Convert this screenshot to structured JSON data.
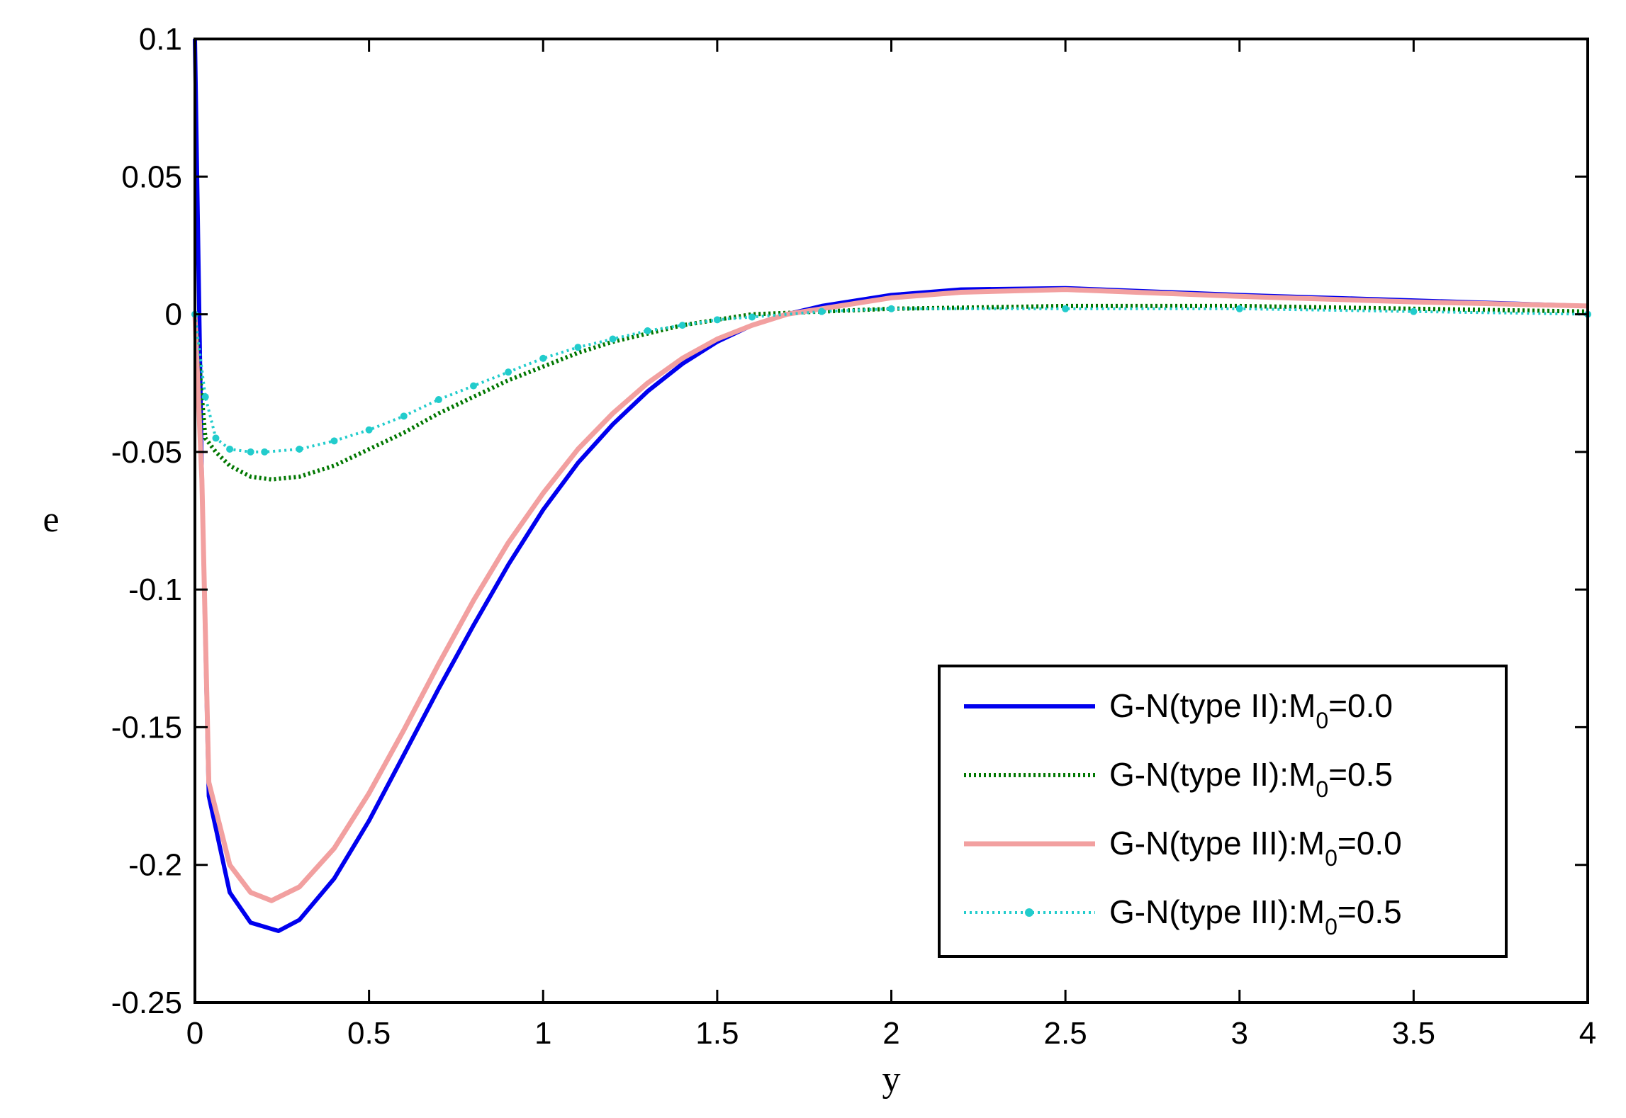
{
  "chart_data": {
    "type": "line",
    "title": "",
    "xlabel": "y",
    "ylabel": "e",
    "xlim": [
      0,
      4
    ],
    "ylim": [
      -0.25,
      0.1
    ],
    "xticks": [
      0,
      0.5,
      1,
      1.5,
      2,
      2.5,
      3,
      3.5,
      4
    ],
    "xtick_labels": [
      "0",
      "0.5",
      "1",
      "1.5",
      "2",
      "2.5",
      "3",
      "3.5",
      "4"
    ],
    "yticks": [
      0.1,
      0.05,
      0,
      -0.05,
      -0.1,
      -0.15,
      -0.2,
      -0.25
    ],
    "ytick_labels": [
      "0.1",
      "0.05",
      "0",
      "-0.05",
      "-0.1",
      "-0.15",
      "-0.2",
      "-0.25"
    ],
    "grid": false,
    "legend_position": "bottom-right",
    "series": [
      {
        "name": "G-N(type II):M0=0.0",
        "label_main": "G-N(type II):M",
        "label_sub": "0",
        "label_tail": "=0.0",
        "color": "#0000ee",
        "style": "solid",
        "points": [
          [
            0,
            0.1
          ],
          [
            0.02,
            -0.06
          ],
          [
            0.04,
            -0.175
          ],
          [
            0.1,
            -0.21
          ],
          [
            0.16,
            -0.221
          ],
          [
            0.24,
            -0.224
          ],
          [
            0.3,
            -0.22
          ],
          [
            0.4,
            -0.205
          ],
          [
            0.5,
            -0.184
          ],
          [
            0.6,
            -0.16
          ],
          [
            0.7,
            -0.136
          ],
          [
            0.8,
            -0.113
          ],
          [
            0.9,
            -0.091
          ],
          [
            1.0,
            -0.071
          ],
          [
            1.1,
            -0.054
          ],
          [
            1.2,
            -0.04
          ],
          [
            1.3,
            -0.028
          ],
          [
            1.4,
            -0.018
          ],
          [
            1.5,
            -0.01
          ],
          [
            1.6,
            -0.004
          ],
          [
            1.7,
            0.0
          ],
          [
            1.8,
            0.003
          ],
          [
            1.9,
            0.005
          ],
          [
            2.0,
            0.007
          ],
          [
            2.2,
            0.009
          ],
          [
            2.5,
            0.0095
          ],
          [
            2.8,
            0.008
          ],
          [
            3.0,
            0.007
          ],
          [
            3.5,
            0.005
          ],
          [
            4.0,
            0.003
          ]
        ]
      },
      {
        "name": "G-N(type II):M0=0.5",
        "label_main": "G-N(type II):M",
        "label_sub": "0",
        "label_tail": "=0.5",
        "color": "#007700",
        "style": "dotted",
        "points": [
          [
            0,
            0.0
          ],
          [
            0.03,
            -0.045
          ],
          [
            0.06,
            -0.05
          ],
          [
            0.1,
            -0.055
          ],
          [
            0.16,
            -0.059
          ],
          [
            0.22,
            -0.06
          ],
          [
            0.3,
            -0.059
          ],
          [
            0.4,
            -0.055
          ],
          [
            0.5,
            -0.049
          ],
          [
            0.6,
            -0.043
          ],
          [
            0.7,
            -0.036
          ],
          [
            0.8,
            -0.03
          ],
          [
            0.9,
            -0.024
          ],
          [
            1.0,
            -0.019
          ],
          [
            1.1,
            -0.014
          ],
          [
            1.2,
            -0.01
          ],
          [
            1.3,
            -0.007
          ],
          [
            1.4,
            -0.004
          ],
          [
            1.5,
            -0.002
          ],
          [
            1.6,
            0.0
          ],
          [
            1.8,
            0.001
          ],
          [
            2.0,
            0.002
          ],
          [
            2.5,
            0.003
          ],
          [
            3.0,
            0.003
          ],
          [
            3.5,
            0.002
          ],
          [
            4.0,
            0.001
          ]
        ]
      },
      {
        "name": "G-N(type III):M0=0.0",
        "label_main": "G-N(type III):M",
        "label_sub": "0",
        "label_tail": "=0.0",
        "color": "#f2a0a0",
        "style": "hatched",
        "points": [
          [
            0,
            0.0
          ],
          [
            0.02,
            -0.06
          ],
          [
            0.04,
            -0.17
          ],
          [
            0.1,
            -0.2
          ],
          [
            0.16,
            -0.21
          ],
          [
            0.22,
            -0.213
          ],
          [
            0.3,
            -0.208
          ],
          [
            0.4,
            -0.194
          ],
          [
            0.5,
            -0.174
          ],
          [
            0.6,
            -0.151
          ],
          [
            0.7,
            -0.127
          ],
          [
            0.8,
            -0.104
          ],
          [
            0.9,
            -0.083
          ],
          [
            1.0,
            -0.065
          ],
          [
            1.1,
            -0.049
          ],
          [
            1.2,
            -0.036
          ],
          [
            1.3,
            -0.025
          ],
          [
            1.4,
            -0.016
          ],
          [
            1.5,
            -0.009
          ],
          [
            1.6,
            -0.004
          ],
          [
            1.7,
            0.0
          ],
          [
            1.8,
            0.002
          ],
          [
            1.9,
            0.004
          ],
          [
            2.0,
            0.006
          ],
          [
            2.2,
            0.008
          ],
          [
            2.5,
            0.009
          ],
          [
            2.8,
            0.0075
          ],
          [
            3.0,
            0.0065
          ],
          [
            3.5,
            0.0045
          ],
          [
            4.0,
            0.003
          ]
        ]
      },
      {
        "name": "G-N(type III):M0=0.5",
        "label_main": "G-N(type III):M",
        "label_sub": "0",
        "label_tail": "=0.5",
        "color": "#22cccc",
        "style": "dot-marker",
        "points": [
          [
            0,
            0.0
          ],
          [
            0.03,
            -0.03
          ],
          [
            0.06,
            -0.045
          ],
          [
            0.1,
            -0.049
          ],
          [
            0.16,
            -0.05
          ],
          [
            0.2,
            -0.05
          ],
          [
            0.3,
            -0.049
          ],
          [
            0.4,
            -0.046
          ],
          [
            0.5,
            -0.042
          ],
          [
            0.6,
            -0.037
          ],
          [
            0.7,
            -0.031
          ],
          [
            0.8,
            -0.026
          ],
          [
            0.9,
            -0.021
          ],
          [
            1.0,
            -0.016
          ],
          [
            1.1,
            -0.012
          ],
          [
            1.2,
            -0.009
          ],
          [
            1.3,
            -0.006
          ],
          [
            1.4,
            -0.004
          ],
          [
            1.5,
            -0.002
          ],
          [
            1.6,
            -0.001
          ],
          [
            1.8,
            0.001
          ],
          [
            2.0,
            0.002
          ],
          [
            2.5,
            0.002
          ],
          [
            3.0,
            0.002
          ],
          [
            3.5,
            0.001
          ],
          [
            4.0,
            0.0
          ]
        ]
      }
    ]
  }
}
